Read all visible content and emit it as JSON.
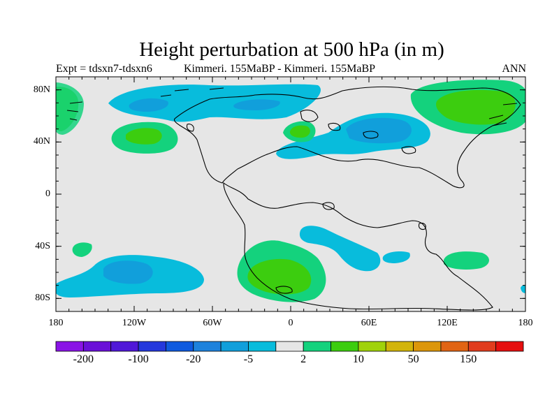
{
  "figure": {
    "title": "Height perturbation at 500 hPa (in m)",
    "left_label": "Expt = tdsxn7-tdsxn6",
    "center_label": "Kimmeri. 155MaBP - Kimmeri. 155MaBP",
    "right_label": "ANN"
  },
  "chart_data": {
    "type": "heatmap",
    "projection": "cylindrical-equidistant",
    "lon_range": [
      -180,
      180
    ],
    "lat_range": [
      -90,
      90
    ],
    "x_tick_labels": [
      "180",
      "120W",
      "60W",
      "0",
      "60E",
      "120E",
      "180"
    ],
    "x_tick_values": [
      -180,
      -120,
      -60,
      0,
      60,
      120,
      180
    ],
    "y_tick_labels": [
      "80N",
      "40N",
      "0",
      "40S",
      "80S"
    ],
    "y_tick_values": [
      80,
      40,
      0,
      -40,
      -80
    ],
    "colorbar": {
      "levels": [
        "-200",
        "-100",
        "-20",
        "-5",
        "2",
        "10",
        "50",
        "150"
      ],
      "level_values": [
        -200,
        -100,
        -20,
        -5,
        2,
        10,
        50,
        150
      ],
      "colors": [
        "#8a14e6",
        "#6a10d8",
        "#5018d8",
        "#2438dc",
        "#0f5adf",
        "#1e82dc",
        "#119fdb",
        "#08bcdc",
        "#e6e6e6",
        "#14d27d",
        "#3ccd0f",
        "#a0d20a",
        "#d2b40a",
        "#dc960a",
        "#e16414",
        "#e13c1e",
        "#e60f0f"
      ]
    },
    "contour_regions": [
      {
        "name": "north-pacific-low",
        "lon": -120,
        "lat": 70,
        "value_range": [
          -20,
          -5
        ]
      },
      {
        "name": "north-pacific-low-core",
        "lon": -115,
        "lat": 73,
        "value_range": [
          -100,
          -20
        ]
      },
      {
        "name": "north-atlantic-low",
        "lon": -40,
        "lat": 73,
        "value_range": [
          -20,
          -5
        ]
      },
      {
        "name": "eastern-pacific-high",
        "lon": -120,
        "lat": 44,
        "value_range": [
          2,
          10
        ]
      },
      {
        "name": "europe-high",
        "lon": 10,
        "lat": 48,
        "value_range": [
          10,
          50
        ]
      },
      {
        "name": "asia-low",
        "lon": 60,
        "lat": 48,
        "value_range": [
          -20,
          -5
        ]
      },
      {
        "name": "asia-low-core",
        "lon": 65,
        "lat": 50,
        "value_range": [
          -100,
          -20
        ]
      },
      {
        "name": "arctic-high",
        "lon": 145,
        "lat": 70,
        "value_range": [
          10,
          50
        ]
      },
      {
        "name": "south-pacific-low",
        "lon": -130,
        "lat": -58,
        "value_range": [
          -20,
          -5
        ]
      },
      {
        "name": "south-pacific-low-core",
        "lon": -120,
        "lat": -60,
        "value_range": [
          -100,
          -20
        ]
      },
      {
        "name": "south-atlantic-high",
        "lon": 0,
        "lat": -62,
        "value_range": [
          10,
          50
        ]
      },
      {
        "name": "southern-indian-low",
        "lon": 50,
        "lat": -42,
        "value_range": [
          -20,
          -5
        ]
      },
      {
        "name": "southern-high-east",
        "lon": 135,
        "lat": -52,
        "value_range": [
          2,
          10
        ]
      },
      {
        "name": "southern-high-west",
        "lon": -160,
        "lat": -44,
        "value_range": [
          2,
          10
        ]
      }
    ]
  }
}
